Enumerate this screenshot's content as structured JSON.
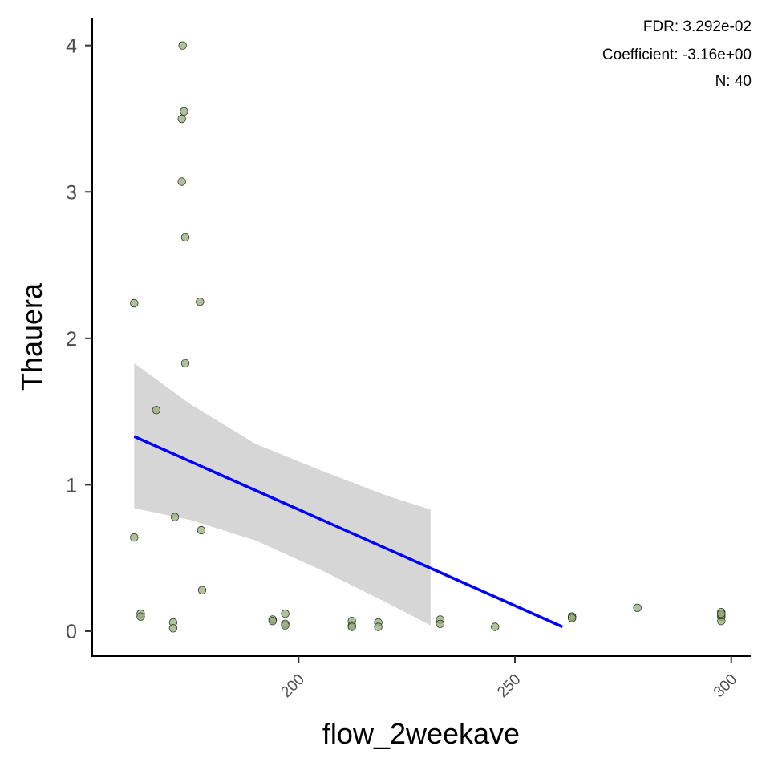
{
  "chart_data": {
    "type": "scatter",
    "title": "",
    "xlabel": "flow_2weekave",
    "ylabel": "Thauera",
    "xlim": [
      152.3,
      304.5
    ],
    "ylim": [
      -0.17,
      4.19
    ],
    "x_ticks": [
      200,
      250,
      300
    ],
    "y_ticks": [
      0,
      1,
      2,
      3,
      4
    ],
    "grid": false,
    "legend": "none",
    "annotations": [
      "FDR: 3.292e-02",
      "Coefficient: -3.16e+00",
      "N: 40"
    ],
    "colors": {
      "points": "#9aab7d",
      "fit_line": "#0000ff",
      "confidence_band": "#cccccc"
    },
    "points": [
      {
        "x": 162.0,
        "y": 2.24
      },
      {
        "x": 162.0,
        "y": 0.64
      },
      {
        "x": 163.5,
        "y": 0.12
      },
      {
        "x": 163.5,
        "y": 0.1
      },
      {
        "x": 167.1,
        "y": 1.51
      },
      {
        "x": 171.0,
        "y": 0.06
      },
      {
        "x": 171.0,
        "y": 0.02
      },
      {
        "x": 171.4,
        "y": 0.78
      },
      {
        "x": 173.2,
        "y": 4.0
      },
      {
        "x": 173.0,
        "y": 3.5
      },
      {
        "x": 173.5,
        "y": 3.55
      },
      {
        "x": 173.0,
        "y": 3.07
      },
      {
        "x": 173.8,
        "y": 2.69
      },
      {
        "x": 173.8,
        "y": 1.83
      },
      {
        "x": 177.2,
        "y": 2.25
      },
      {
        "x": 177.5,
        "y": 0.69
      },
      {
        "x": 177.7,
        "y": 0.28
      },
      {
        "x": 194.0,
        "y": 0.08
      },
      {
        "x": 194.0,
        "y": 0.07
      },
      {
        "x": 196.9,
        "y": 0.12
      },
      {
        "x": 196.9,
        "y": 0.05
      },
      {
        "x": 196.9,
        "y": 0.04
      },
      {
        "x": 212.3,
        "y": 0.07
      },
      {
        "x": 212.3,
        "y": 0.04
      },
      {
        "x": 212.3,
        "y": 0.03
      },
      {
        "x": 218.4,
        "y": 0.06
      },
      {
        "x": 218.4,
        "y": 0.03
      },
      {
        "x": 232.7,
        "y": 0.08
      },
      {
        "x": 232.7,
        "y": 0.05
      },
      {
        "x": 245.4,
        "y": 0.03
      },
      {
        "x": 263.2,
        "y": 0.1
      },
      {
        "x": 263.2,
        "y": 0.09
      },
      {
        "x": 263.2,
        "y": 0.1
      },
      {
        "x": 263.2,
        "y": 0.09
      },
      {
        "x": 278.3,
        "y": 0.16
      },
      {
        "x": 297.7,
        "y": 0.13
      },
      {
        "x": 297.7,
        "y": 0.1
      },
      {
        "x": 297.7,
        "y": 0.07
      },
      {
        "x": 297.7,
        "y": 0.11
      },
      {
        "x": 297.7,
        "y": 0.12
      }
    ],
    "fit_line": {
      "x": [
        162.0,
        261.0
      ],
      "y": [
        1.33,
        0.03
      ]
    },
    "confidence_band": {
      "x": [
        162.0,
        175.0,
        190.0,
        205.0,
        220.0,
        230.5
      ],
      "upper": [
        1.83,
        1.55,
        1.28,
        1.1,
        0.93,
        0.83
      ],
      "lower": [
        0.84,
        0.76,
        0.62,
        0.42,
        0.2,
        0.04
      ]
    }
  }
}
